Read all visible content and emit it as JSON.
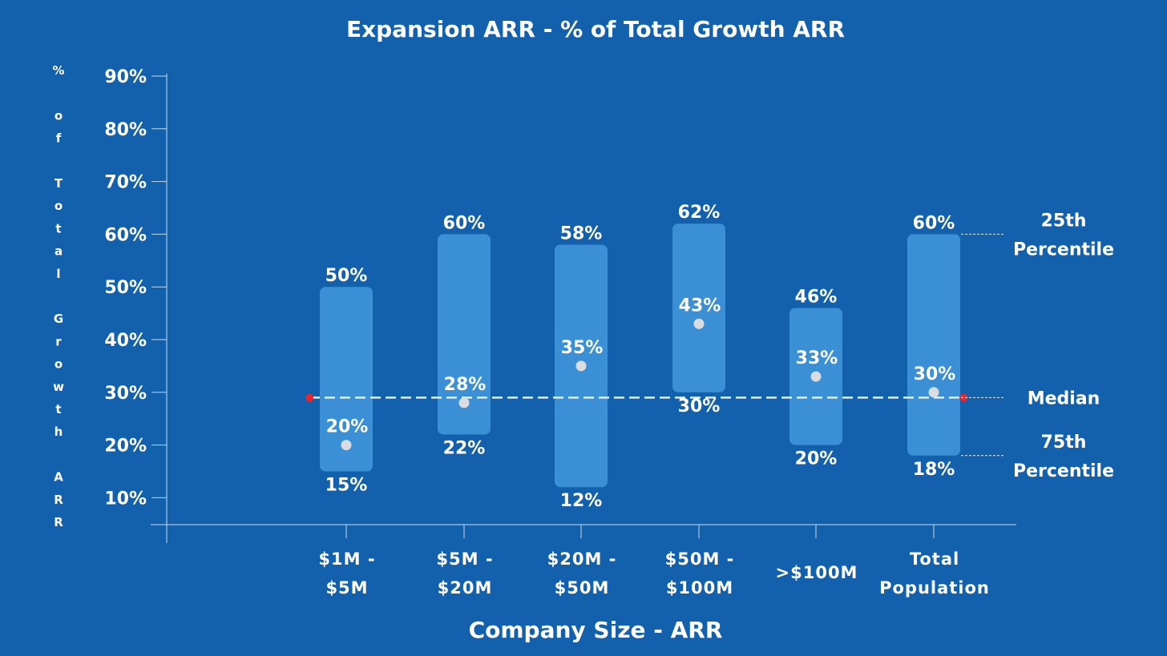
{
  "chart_data": {
    "type": "range-bar",
    "title": "Expansion ARR - % of Total Growth ARR",
    "xlabel": "Company Size - ARR",
    "ylabel": "% of Total Growth ARR",
    "ylim": [
      5,
      90
    ],
    "yticks": [
      "10%",
      "20%",
      "30%",
      "40%",
      "50%",
      "60%",
      "70%",
      "80%",
      "90%"
    ],
    "categories": [
      [
        "$1M -",
        "$5M"
      ],
      [
        "$5M -",
        "$20M"
      ],
      [
        "$20M -",
        "$50M"
      ],
      [
        "$50M -",
        "$100M"
      ],
      [
        ">$100M"
      ],
      [
        "Total",
        "Population"
      ]
    ],
    "series": [
      {
        "name": "25th Percentile",
        "values": [
          50,
          60,
          58,
          62,
          46,
          60
        ]
      },
      {
        "name": "Median",
        "values": [
          20,
          28,
          35,
          43,
          33,
          30
        ]
      },
      {
        "name": "75th Percentile",
        "values": [
          15,
          22,
          12,
          30,
          20,
          18
        ]
      }
    ],
    "labels": {
      "top": [
        "50%",
        "60%",
        "58%",
        "62%",
        "46%",
        "60%"
      ],
      "median": [
        "20%",
        "28%",
        "35%",
        "43%",
        "33%",
        "30%"
      ],
      "bottom": [
        "15%",
        "22%",
        "12%",
        "30%",
        "20%",
        "18%"
      ]
    },
    "reference_line": {
      "value": 29
    },
    "legend": [
      {
        "lines": [
          "25th",
          "Percentile"
        ],
        "value": 60
      },
      {
        "lines": [
          "Median"
        ],
        "value": 29
      },
      {
        "lines": [
          "75th",
          "Percentile"
        ],
        "value": 18
      }
    ],
    "colors": {
      "background": "#1360ac",
      "bar": "#3a8fd5",
      "median_dot": "#d9dde3",
      "reference_line": "#e6eef7",
      "reference_endpoint": "#e8242c",
      "axis": "#c8d8ea",
      "text": "#ffffff"
    }
  }
}
